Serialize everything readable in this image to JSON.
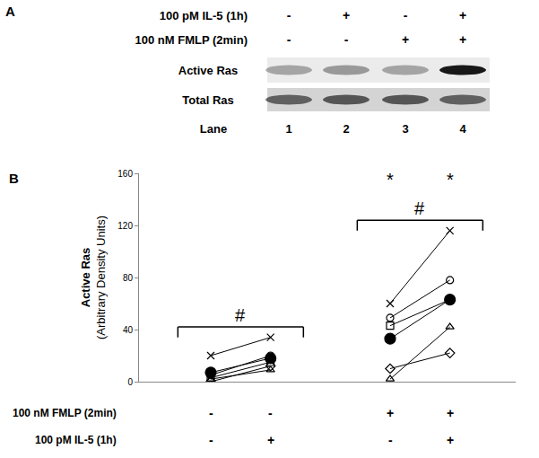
{
  "panel_a": {
    "panel_label": "A",
    "conditions": [
      {
        "label": "100 pM IL-5 (1h)",
        "signs": [
          "-",
          "+",
          "-",
          "+"
        ]
      },
      {
        "label": "100 nM FMLP (2min)",
        "signs": [
          "-",
          "-",
          "+",
          "+"
        ]
      }
    ],
    "blots": [
      {
        "label": "Active Ras",
        "intensity": [
          0.3,
          0.35,
          0.3,
          0.9
        ]
      },
      {
        "label": "Total Ras",
        "intensity": [
          0.55,
          0.6,
          0.6,
          0.55
        ]
      }
    ],
    "lane_label": "Lane",
    "lanes": [
      "1",
      "2",
      "3",
      "4"
    ]
  },
  "chart_data": {
    "type": "line",
    "panel_label": "B",
    "y_title": [
      "Active Ras",
      "(Arbitrary Density Units)"
    ],
    "x_rows": [
      {
        "label": "100 nM FMLP (2min)",
        "signs": [
          "-",
          "-",
          null,
          "+",
          "+"
        ]
      },
      {
        "label": "100 pM IL-5 (1h)",
        "signs": [
          "-",
          "+",
          null,
          "-",
          "+"
        ]
      }
    ],
    "series": [
      {
        "marker": "x",
        "values": [
          20,
          34,
          null,
          60,
          116
        ]
      },
      {
        "marker": "circle-open",
        "values": [
          5,
          20,
          null,
          49,
          78
        ]
      },
      {
        "marker": "square-open",
        "values": [
          3,
          15,
          null,
          43,
          63
        ]
      },
      {
        "marker": "triangle-open",
        "values": [
          2,
          9,
          null,
          2,
          42
        ]
      },
      {
        "marker": "diamond-open",
        "values": [
          0,
          12,
          null,
          10,
          22
        ]
      },
      {
        "marker": "circle",
        "values": [
          7,
          18,
          null,
          33,
          63
        ]
      }
    ],
    "color": "#000000",
    "ylim": [
      0,
      160
    ],
    "yticks": [
      0,
      40,
      80,
      120,
      160
    ],
    "annotations": [
      {
        "text": "#",
        "bracket": [
          0,
          1
        ]
      },
      {
        "text": "#",
        "bracket": [
          3,
          4
        ]
      },
      {
        "text": "*",
        "at": 3
      },
      {
        "text": "*",
        "at": 4
      }
    ]
  }
}
